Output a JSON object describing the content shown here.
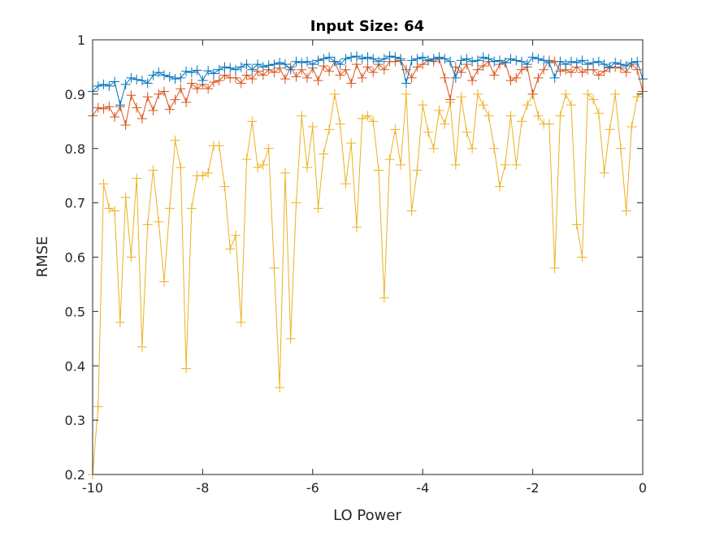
{
  "chart_data": {
    "type": "line",
    "title": "Input Size: 64",
    "xlabel": "LO Power",
    "ylabel": "RMSE",
    "xlim": [
      -10,
      0
    ],
    "ylim": [
      0.2,
      1
    ],
    "xticks": [
      -10,
      -8,
      -6,
      -4,
      -2,
      0
    ],
    "yticks": [
      0.2,
      0.3,
      0.4,
      0.5,
      0.6,
      0.7,
      0.8,
      0.9,
      1
    ],
    "xtick_labels": [
      "-10",
      "-8",
      "-6",
      "-4",
      "-2",
      "0"
    ],
    "ytick_labels": [
      "0.2",
      "0.3",
      "0.4",
      "0.5",
      "0.6",
      "0.7",
      "0.8",
      "0.9",
      "1"
    ],
    "grid": false,
    "legend": "none",
    "marker": "+",
    "x": [
      -10,
      -9.9,
      -9.8,
      -9.7,
      -9.6,
      -9.5,
      -9.4,
      -9.3,
      -9.2,
      -9.1,
      -9,
      -8.9,
      -8.8,
      -8.7,
      -8.6,
      -8.5,
      -8.4,
      -8.3,
      -8.2,
      -8.1,
      -8,
      -7.9,
      -7.8,
      -7.7,
      -7.6,
      -7.5,
      -7.4,
      -7.3,
      -7.2,
      -7.1,
      -7,
      -6.9,
      -6.8,
      -6.7,
      -6.6,
      -6.5,
      -6.4,
      -6.3,
      -6.2,
      -6.1,
      -6,
      -5.9,
      -5.8,
      -5.7,
      -5.6,
      -5.5,
      -5.4,
      -5.3,
      -5.2,
      -5.1,
      -5,
      -4.9,
      -4.8,
      -4.7,
      -4.6,
      -4.5,
      -4.4,
      -4.3,
      -4.2,
      -4.1,
      -4,
      -3.9,
      -3.8,
      -3.7,
      -3.6,
      -3.5,
      -3.4,
      -3.3,
      -3.2,
      -3.1,
      -3,
      -2.9,
      -2.8,
      -2.7,
      -2.6,
      -2.5,
      -2.4,
      -2.3,
      -2.2,
      -2.1,
      -2,
      -1.9,
      -1.8,
      -1.7,
      -1.6,
      -1.5,
      -1.4,
      -1.3,
      -1.2,
      -1.1,
      -1,
      -0.9,
      -0.8,
      -0.7,
      -0.6,
      -0.5,
      -0.4,
      -0.3,
      -0.2,
      -0.1,
      0
    ],
    "series": [
      {
        "color": "#0072BD",
        "values": [
          0.905,
          0.915,
          0.918,
          0.915,
          0.923,
          0.88,
          0.918,
          0.93,
          0.927,
          0.925,
          0.92,
          0.935,
          0.94,
          0.935,
          0.932,
          0.928,
          0.93,
          0.942,
          0.94,
          0.944,
          0.925,
          0.943,
          0.938,
          0.945,
          0.95,
          0.948,
          0.945,
          0.95,
          0.955,
          0.945,
          0.955,
          0.95,
          0.953,
          0.955,
          0.958,
          0.955,
          0.945,
          0.96,
          0.958,
          0.96,
          0.955,
          0.962,
          0.965,
          0.968,
          0.96,
          0.955,
          0.965,
          0.968,
          0.97,
          0.965,
          0.968,
          0.965,
          0.96,
          0.965,
          0.97,
          0.968,
          0.965,
          0.92,
          0.962,
          0.965,
          0.968,
          0.962,
          0.965,
          0.968,
          0.965,
          0.96,
          0.93,
          0.962,
          0.965,
          0.96,
          0.962,
          0.968,
          0.965,
          0.96,
          0.962,
          0.958,
          0.965,
          0.962,
          0.96,
          0.955,
          0.968,
          0.965,
          0.962,
          0.958,
          0.93,
          0.96,
          0.955,
          0.96,
          0.958,
          0.962,
          0.955,
          0.958,
          0.96,
          0.955,
          0.95,
          0.958,
          0.955,
          0.952,
          0.958,
          0.96,
          0.928
        ]
      },
      {
        "color": "#D95319",
        "values": [
          0.86,
          0.875,
          0.873,
          0.877,
          0.858,
          0.877,
          0.843,
          0.898,
          0.875,
          0.855,
          0.895,
          0.87,
          0.9,
          0.905,
          0.872,
          0.89,
          0.91,
          0.885,
          0.92,
          0.91,
          0.918,
          0.91,
          0.922,
          0.925,
          0.935,
          0.93,
          0.93,
          0.92,
          0.935,
          0.928,
          0.942,
          0.935,
          0.945,
          0.94,
          0.948,
          0.928,
          0.95,
          0.932,
          0.945,
          0.93,
          0.948,
          0.925,
          0.952,
          0.942,
          0.96,
          0.935,
          0.945,
          0.92,
          0.955,
          0.93,
          0.95,
          0.94,
          0.955,
          0.945,
          0.96,
          0.96,
          0.962,
          0.945,
          0.93,
          0.95,
          0.955,
          0.962,
          0.96,
          0.965,
          0.93,
          0.89,
          0.95,
          0.94,
          0.955,
          0.925,
          0.945,
          0.952,
          0.96,
          0.935,
          0.955,
          0.958,
          0.925,
          0.93,
          0.945,
          0.95,
          0.9,
          0.93,
          0.945,
          0.962,
          0.96,
          0.942,
          0.945,
          0.94,
          0.95,
          0.94,
          0.945,
          0.945,
          0.935,
          0.942,
          0.948,
          0.95,
          0.948,
          0.94,
          0.955,
          0.945,
          0.905
        ]
      },
      {
        "color": "#EDB120",
        "values": [
          0.2,
          0.325,
          0.735,
          0.69,
          0.685,
          0.48,
          0.71,
          0.6,
          0.745,
          0.435,
          0.66,
          0.76,
          0.665,
          0.555,
          0.69,
          0.815,
          0.765,
          0.395,
          0.69,
          0.75,
          0.75,
          0.755,
          0.805,
          0.805,
          0.73,
          0.615,
          0.64,
          0.48,
          0.78,
          0.85,
          0.765,
          0.77,
          0.8,
          0.58,
          0.36,
          0.755,
          0.45,
          0.7,
          0.86,
          0.765,
          0.84,
          0.69,
          0.79,
          0.835,
          0.9,
          0.845,
          0.735,
          0.81,
          0.655,
          0.855,
          0.86,
          0.85,
          0.76,
          0.525,
          0.78,
          0.835,
          0.77,
          0.9,
          0.685,
          0.76,
          0.88,
          0.83,
          0.8,
          0.87,
          0.845,
          0.885,
          0.77,
          0.895,
          0.83,
          0.8,
          0.9,
          0.88,
          0.86,
          0.8,
          0.73,
          0.77,
          0.86,
          0.77,
          0.85,
          0.88,
          0.9,
          0.86,
          0.845,
          0.845,
          0.58,
          0.86,
          0.9,
          0.88,
          0.66,
          0.6,
          0.9,
          0.89,
          0.865,
          0.755,
          0.835,
          0.9,
          0.8,
          0.685,
          0.84,
          0.895,
          0.905
        ]
      }
    ]
  }
}
